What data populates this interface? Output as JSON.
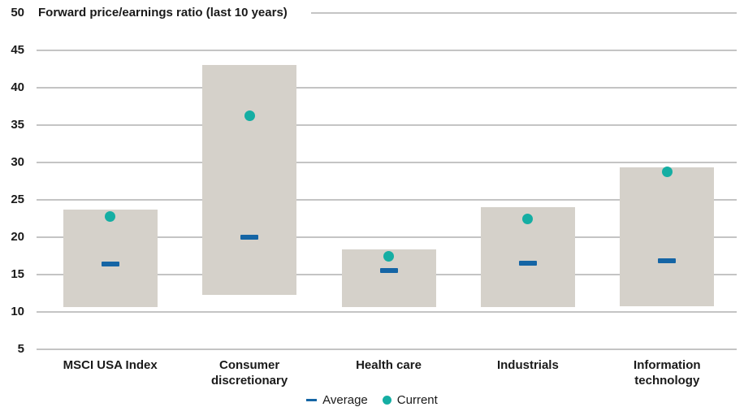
{
  "colors": {
    "bar_fill": "#d5d1ca",
    "average_blue": "#1565a5",
    "current_teal": "#15aea3",
    "gridline": "#c4c4c4",
    "text": "#1a1a1a"
  },
  "chart_data": {
    "type": "range-bar",
    "title": "Forward price/earnings ratio (last 10 years)",
    "categories": [
      "MSCI USA Index",
      "Consumer discretionary",
      "Health care",
      "Industrials",
      "Information technology"
    ],
    "y_ticks": [
      50,
      45,
      40,
      35,
      30,
      25,
      20,
      15,
      10,
      5
    ],
    "ylim": [
      5,
      50
    ],
    "grid": true,
    "legend_position": "bottom",
    "series": [
      {
        "name": "10-year range",
        "low": [
          10.6,
          12.3,
          10.6,
          10.7,
          10.8
        ],
        "high": [
          23.7,
          43.0,
          18.4,
          24.0,
          29.4
        ]
      },
      {
        "name": "Average",
        "marker": "dash",
        "values": [
          16.4,
          20.0,
          15.5,
          16.5,
          16.8
        ]
      },
      {
        "name": "Current",
        "marker": "dot",
        "values": [
          22.8,
          36.3,
          17.5,
          22.4,
          28.7
        ]
      }
    ]
  }
}
